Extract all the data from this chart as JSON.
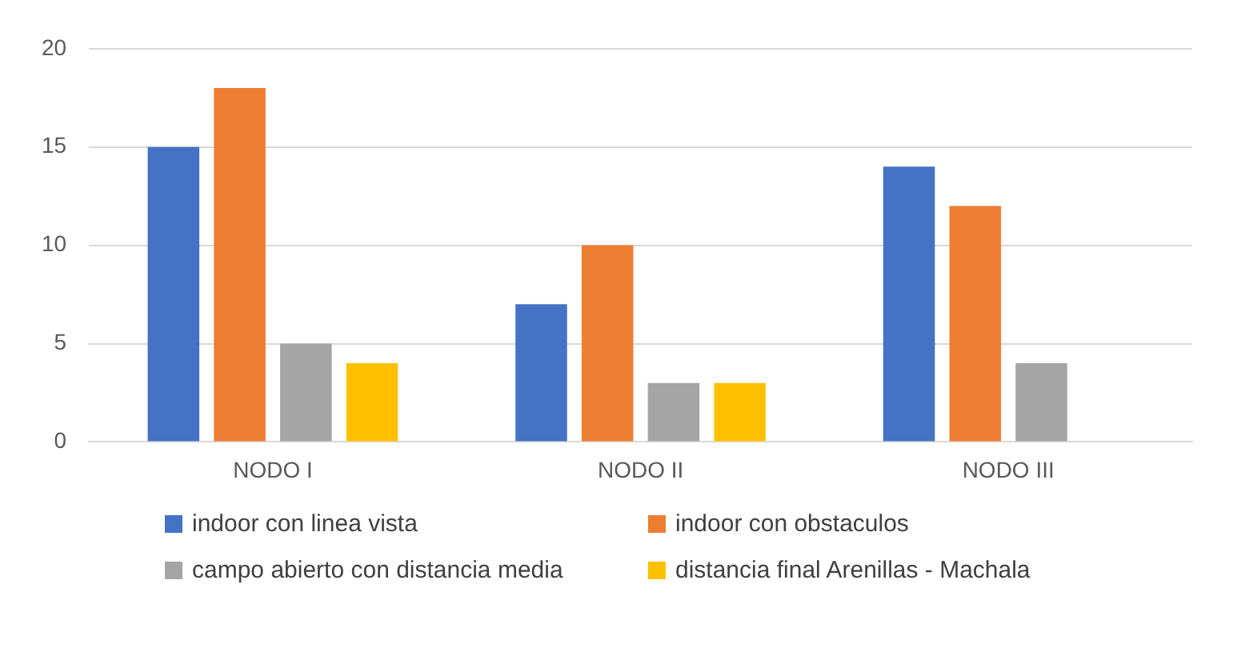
{
  "chart_data": {
    "type": "bar",
    "categories": [
      "NODO I",
      "NODO II",
      "NODO III"
    ],
    "series": [
      {
        "name": "indoor con linea vista",
        "color": "#4472c4",
        "values": [
          15,
          7,
          14
        ]
      },
      {
        "name": "indoor con obstaculos",
        "color": "#ed7d31",
        "values": [
          18,
          10,
          12
        ]
      },
      {
        "name": "campo abierto con distancia media",
        "color": "#a5a5a5",
        "values": [
          5,
          3,
          4
        ]
      },
      {
        "name": "distancia final Arenillas - Machala",
        "color": "#ffc000",
        "values": [
          4,
          3,
          null
        ]
      }
    ],
    "ylim": [
      0,
      20
    ],
    "yticks": [
      0,
      5,
      10,
      15,
      20
    ],
    "grid": "y",
    "legend": "bottom"
  }
}
